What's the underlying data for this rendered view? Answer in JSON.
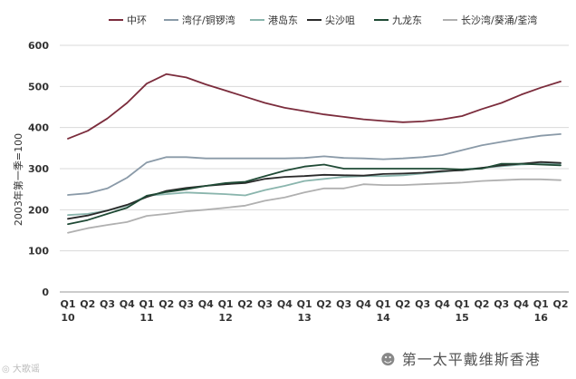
{
  "chart_data": {
    "type": "line",
    "ylabel": "2003年第一季=100",
    "ylim": [
      0,
      600
    ],
    "yticks": [
      0,
      100,
      200,
      300,
      400,
      500,
      600
    ],
    "grid": true,
    "legend_position": "top",
    "x_quarters": [
      "Q1",
      "Q2",
      "Q3",
      "Q4",
      "Q1",
      "Q2",
      "Q3",
      "Q4",
      "Q1",
      "Q2",
      "Q3",
      "Q4",
      "Q1",
      "Q2",
      "Q3",
      "Q4",
      "Q1",
      "Q2",
      "Q3",
      "Q4",
      "Q1",
      "Q2",
      "Q3",
      "Q4",
      "Q1",
      "Q2"
    ],
    "x_years": [
      {
        "label": "10",
        "index": 0
      },
      {
        "label": "11",
        "index": 4
      },
      {
        "label": "12",
        "index": 8
      },
      {
        "label": "13",
        "index": 12
      },
      {
        "label": "14",
        "index": 16
      },
      {
        "label": "15",
        "index": 20
      },
      {
        "label": "16",
        "index": 24
      }
    ],
    "series": [
      {
        "name": "中环",
        "color": "#7b2c3c",
        "width": 1.8,
        "values": [
          373,
          392,
          422,
          460,
          507,
          530,
          522,
          505,
          490,
          475,
          460,
          448,
          440,
          432,
          426,
          420,
          416,
          413,
          415,
          420,
          428,
          445,
          460,
          480,
          497,
          512
        ]
      },
      {
        "name": "湾仔/铜锣湾",
        "color": "#8a9aa8",
        "width": 1.8,
        "values": [
          236,
          240,
          252,
          278,
          315,
          328,
          328,
          325,
          325,
          325,
          325,
          325,
          326,
          330,
          326,
          325,
          323,
          325,
          328,
          333,
          345,
          357,
          365,
          373,
          380,
          384
        ]
      },
      {
        "name": "港岛东",
        "color": "#8ab5ad",
        "width": 1.8,
        "values": [
          187,
          190,
          198,
          210,
          234,
          238,
          242,
          240,
          238,
          235,
          248,
          258,
          270,
          275,
          280,
          282,
          282,
          284,
          288,
          292,
          298,
          302,
          306,
          310,
          312,
          312
        ]
      },
      {
        "name": "尖沙咀",
        "color": "#2a2a2a",
        "width": 1.8,
        "values": [
          178,
          186,
          198,
          212,
          231,
          246,
          253,
          258,
          262,
          265,
          275,
          280,
          282,
          285,
          284,
          283,
          287,
          288,
          290,
          294,
          296,
          302,
          308,
          312,
          316,
          314
        ]
      },
      {
        "name": "九龙东",
        "color": "#1f4a35",
        "width": 1.8,
        "values": [
          165,
          175,
          190,
          205,
          234,
          243,
          250,
          258,
          265,
          268,
          282,
          295,
          305,
          310,
          300,
          300,
          300,
          300,
          300,
          300,
          298,
          300,
          312,
          312,
          310,
          308
        ]
      },
      {
        "name": "长沙湾/葵涌/荃湾",
        "color": "#b0b0b0",
        "width": 1.8,
        "values": [
          144,
          155,
          163,
          170,
          185,
          190,
          196,
          200,
          205,
          210,
          222,
          230,
          242,
          252,
          252,
          262,
          260,
          260,
          262,
          264,
          266,
          270,
          272,
          274,
          274,
          272
        ]
      }
    ]
  },
  "watermark": {
    "brand": "第一太平戴维斯香港",
    "source": "大歌谣"
  }
}
